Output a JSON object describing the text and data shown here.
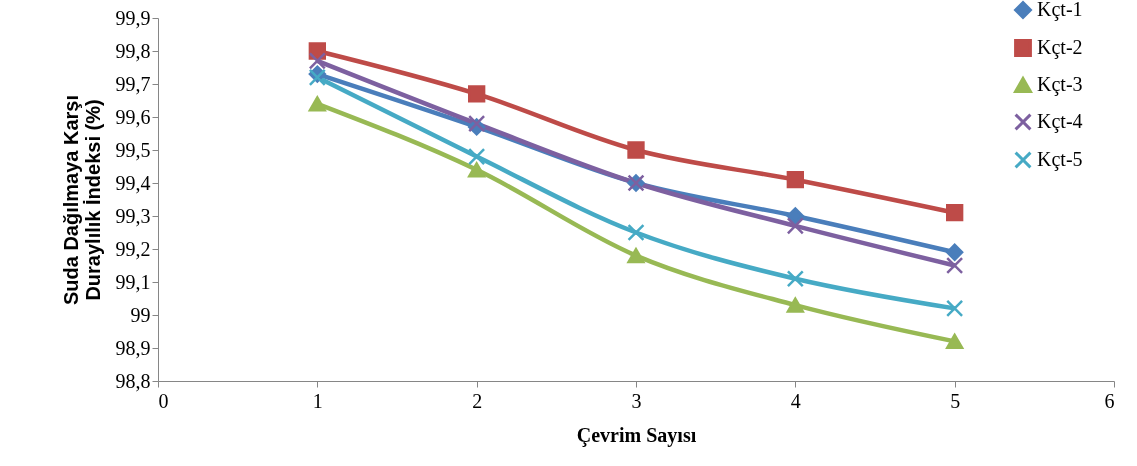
{
  "chart_data": {
    "type": "line",
    "xlabel": "Çevrim Sayısı",
    "ylabel": "Suda Dağılmaya Karşı\nDuraylılık İndeksi (%)",
    "x": [
      1,
      2,
      3,
      4,
      5
    ],
    "xlim": [
      0,
      6
    ],
    "xticks": [
      0,
      1,
      2,
      3,
      4,
      5,
      6
    ],
    "ylim": [
      98.8,
      99.9
    ],
    "yticks": [
      {
        "value": 98.8,
        "label": "98,8"
      },
      {
        "value": 98.9,
        "label": "98,9"
      },
      99,
      {
        "value": 99.1,
        "label": "99,1"
      },
      {
        "value": 99.2,
        "label": "99,2"
      },
      {
        "value": 99.3,
        "label": "99,3"
      },
      {
        "value": 99.4,
        "label": "99,4"
      },
      {
        "value": 99.5,
        "label": "99,5"
      },
      {
        "value": 99.6,
        "label": "99,6"
      },
      {
        "value": 99.7,
        "label": "99,7"
      },
      {
        "value": 99.8,
        "label": "99,8"
      },
      {
        "value": 99.9,
        "label": "99,9"
      }
    ],
    "grid": false,
    "legend": "top right",
    "line_style": "solid",
    "series": [
      {
        "name": "Kçt-1",
        "color": "#4a7ebb",
        "marker": "diamond",
        "values": [
          99.73,
          99.57,
          99.4,
          99.3,
          99.19
        ]
      },
      {
        "name": "Kçt-2",
        "color": "#be4b48",
        "marker": "square",
        "values": [
          99.8,
          99.67,
          99.5,
          99.41,
          99.31
        ]
      },
      {
        "name": "Kçt-3",
        "color": "#98b954",
        "marker": "triangle",
        "values": [
          99.64,
          99.44,
          99.18,
          99.03,
          98.92
        ]
      },
      {
        "name": "Kçt-4",
        "color": "#7d60a0",
        "marker": "cross",
        "values": [
          99.77,
          99.58,
          99.4,
          99.27,
          99.15
        ]
      },
      {
        "name": "Kçt-5",
        "color": "#46aac5",
        "marker": "cross",
        "values": [
          99.72,
          99.48,
          99.25,
          99.11,
          99.02
        ]
      }
    ]
  }
}
